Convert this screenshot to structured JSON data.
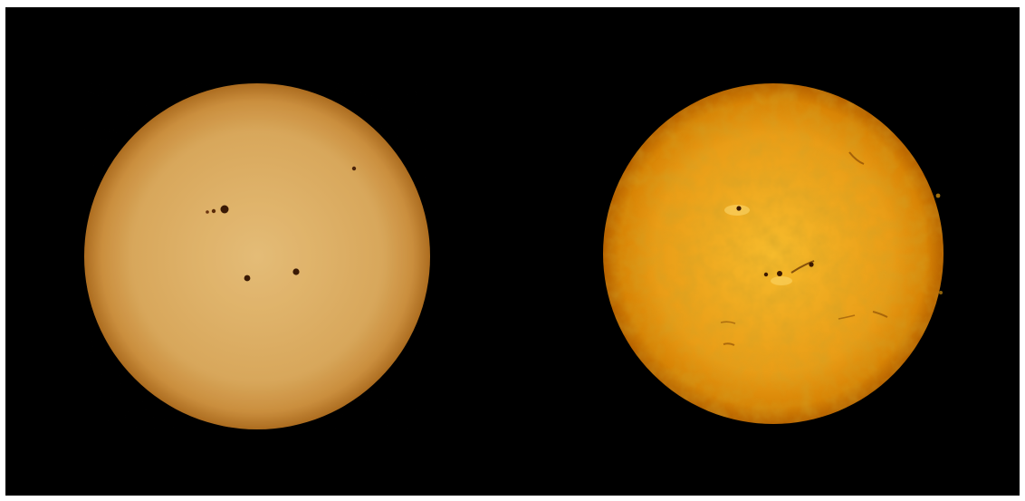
{
  "scene": {
    "background_color": "#000000",
    "border_color": "#ffffff",
    "panels": [
      {
        "name": "white-light-sun",
        "limb_color": "#c07a1e",
        "center_color": "#f2c77a",
        "sunspot_count": 5
      },
      {
        "name": "hydrogen-alpha-sun",
        "limb_color": "#b86b00",
        "center_color": "#f3b126",
        "sunspot_count": 3
      }
    ]
  }
}
